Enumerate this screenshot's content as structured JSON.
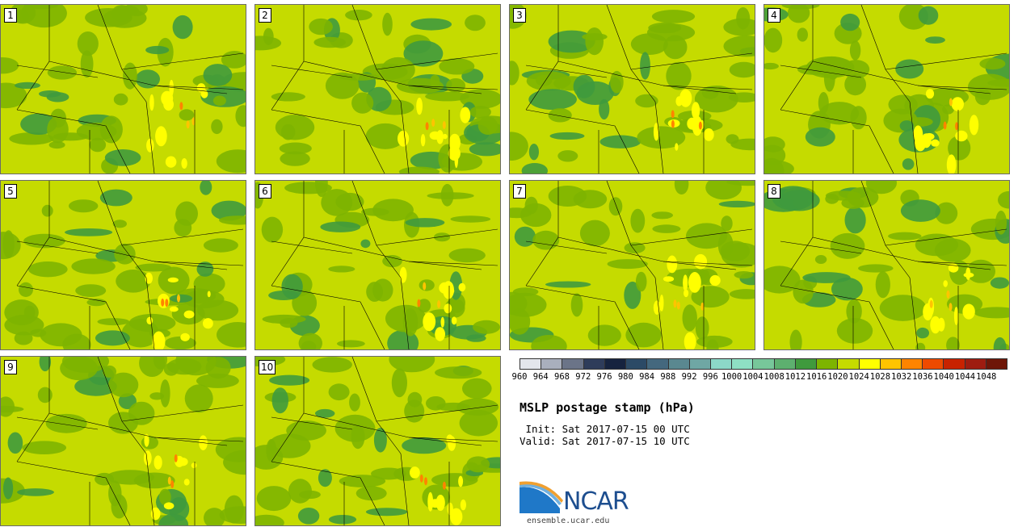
{
  "panels": [
    {
      "label": "1"
    },
    {
      "label": "2"
    },
    {
      "label": "3"
    },
    {
      "label": "4"
    },
    {
      "label": "5"
    },
    {
      "label": "6"
    },
    {
      "label": "7"
    },
    {
      "label": "8"
    },
    {
      "label": "9"
    },
    {
      "label": "10"
    }
  ],
  "colorbar": {
    "ticks": [
      "960",
      "964",
      "968",
      "972",
      "976",
      "980",
      "984",
      "988",
      "992",
      "996",
      "1000",
      "1004",
      "1008",
      "1012",
      "1016",
      "1020",
      "1024",
      "1028",
      "1032",
      "1036",
      "1040",
      "1044",
      "1048"
    ],
    "colors": [
      "#e3e6ec",
      "#a9afbd",
      "#6b7488",
      "#2e3c5a",
      "#16233f",
      "#2c4a66",
      "#44687e",
      "#5a8890",
      "#6fa7a4",
      "#8cd8c8",
      "#8ee0c4",
      "#77c79a",
      "#5db06f",
      "#3f9a3d",
      "#7db400",
      "#c5db00",
      "#ffff00",
      "#ffc400",
      "#ff8400",
      "#ee4a00",
      "#c82200",
      "#9e1c10",
      "#6e1608"
    ]
  },
  "title": "MSLP postage stamp (hPa)",
  "init_text": " Init: Sat 2017-07-15 00 UTC",
  "valid_text": "Valid: Sat 2017-07-15 10 UTC",
  "logo_text": "NCAR",
  "url_text": "ensemble.ucar.edu"
}
